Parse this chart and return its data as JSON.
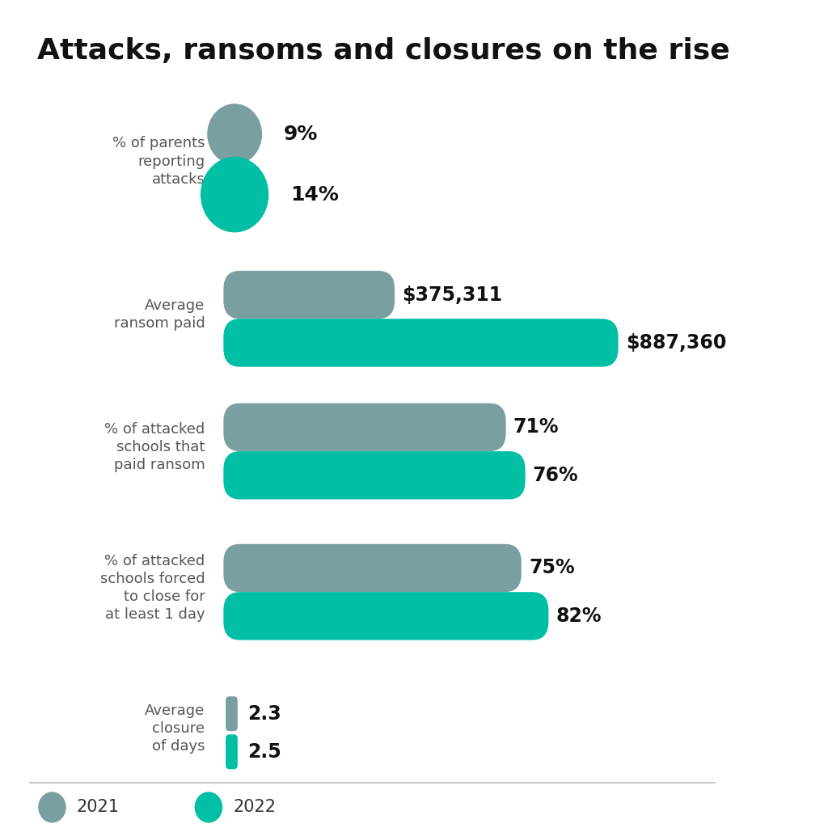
{
  "title": "Attacks, ransoms and closures on the rise",
  "color_2021": "#7a9fa0",
  "color_2022": "#00bfa5",
  "background_color": "#ffffff",
  "sections": [
    {
      "label": "% of parents\nreporting\nattacks",
      "type": "circle",
      "value_2021": 9,
      "value_2022": 14,
      "label_2021": "9%",
      "label_2022": "14%",
      "max_val": 100
    },
    {
      "label": "Average\nransom paid",
      "type": "bar",
      "value_2021": 375311,
      "value_2022": 887360,
      "label_2021": "$375,311",
      "label_2022": "$887,360",
      "max_val": 887360
    },
    {
      "label": "% of attacked\nschools that\npaid ransom",
      "type": "bar",
      "value_2021": 71,
      "value_2022": 76,
      "label_2021": "71%",
      "label_2022": "76%",
      "max_val": 100
    },
    {
      "label": "% of attacked\nschools forced\nto close for\nat least 1 day",
      "type": "bar",
      "value_2021": 75,
      "value_2022": 82,
      "label_2021": "75%",
      "label_2022": "82%",
      "max_val": 100
    },
    {
      "label": "Average\nclosure\nof days",
      "type": "thin_bar",
      "value_2021": 2.3,
      "value_2022": 2.5,
      "label_2021": "2.3",
      "label_2022": "2.5",
      "max_val": 10
    }
  ],
  "legend_label_2021": "2021",
  "legend_label_2022": "2022"
}
